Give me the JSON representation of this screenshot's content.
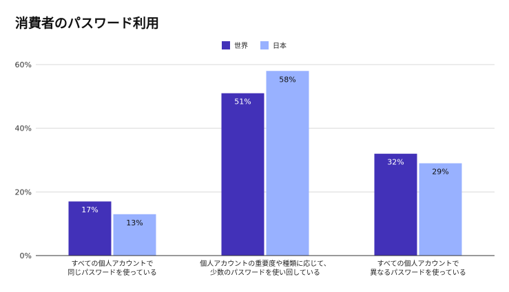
{
  "chart_data": {
    "type": "bar",
    "title": "消費者のパスワード利用",
    "categories": [
      [
        "すべての個人アカウントで",
        "同じパスワードを使っている"
      ],
      [
        "個人アカウントの重要度や種類に応じて、",
        "少数のパスワードを使い回している"
      ],
      [
        "すべての個人アカウントで",
        "異なるパスワードを使っている"
      ]
    ],
    "series": [
      {
        "name": "世界",
        "color": "#4231b8",
        "label_color": "#ffffff",
        "values": [
          17,
          51,
          32
        ],
        "labels": [
          "17%",
          "51%",
          "32%"
        ]
      },
      {
        "name": "日本",
        "color": "#98b1ff",
        "label_color": "#111111",
        "values": [
          13,
          58,
          29
        ],
        "labels": [
          "13%",
          "58%",
          "29%"
        ]
      }
    ],
    "ylim": [
      0,
      60
    ],
    "yticks": [
      0,
      20,
      40,
      60
    ],
    "ytick_labels": [
      "0%",
      "20%",
      "40%",
      "60%"
    ],
    "xlabel": "",
    "ylabel": "",
    "grid": true,
    "legend": "top-center"
  }
}
